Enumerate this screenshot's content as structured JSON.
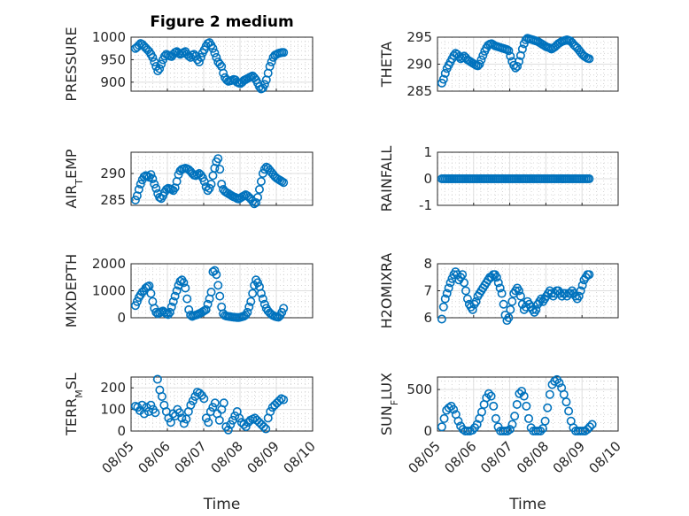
{
  "figure": {
    "title": "Figure 2 medium"
  },
  "x_ticks": [
    "08/05",
    "08/06",
    "08/07",
    "08/08",
    "08/09",
    "08/10"
  ],
  "chart_data": [
    {
      "type": "scatter",
      "ylabel": "PRESSURE",
      "xlabel": "",
      "title": "Figure 2 medium",
      "xlim": [
        0,
        5
      ],
      "ylim": [
        880,
        1000
      ],
      "yticks": [
        900,
        950,
        1000
      ],
      "grid": true,
      "y": [
        975,
        978,
        982,
        986,
        984,
        980,
        976,
        972,
        968,
        962,
        955,
        945,
        935,
        925,
        930,
        940,
        950,
        958,
        962,
        960,
        958,
        957,
        962,
        966,
        968,
        965,
        962,
        964,
        966,
        968,
        962,
        958,
        955,
        960,
        962,
        958,
        950,
        945,
        955,
        965,
        972,
        980,
        986,
        988,
        982,
        975,
        965,
        955,
        945,
        940,
        935,
        920,
        910,
        905,
        902,
        903,
        904,
        906,
        905,
        900,
        898,
        897,
        900,
        904,
        906,
        908,
        910,
        912,
        914,
        910,
        905,
        898,
        890,
        885,
        887,
        895,
        905,
        920,
        935,
        945,
        955,
        960,
        962,
        964,
        965,
        966,
        966
      ]
    },
    {
      "type": "scatter",
      "ylabel": "THETA",
      "xlabel": "",
      "xlim": [
        0,
        5
      ],
      "ylim": [
        285,
        295
      ],
      "yticks": [
        285,
        290,
        295
      ],
      "grid": true,
      "y": [
        286.5,
        287.2,
        288.3,
        289.2,
        289.8,
        290.4,
        291.0,
        291.6,
        292.0,
        291.8,
        291.4,
        291.0,
        291.2,
        291.5,
        291.2,
        290.8,
        290.6,
        290.4,
        290.2,
        290.0,
        289.8,
        289.7,
        290.0,
        290.8,
        291.6,
        292.4,
        293.0,
        293.5,
        293.7,
        293.8,
        293.6,
        293.4,
        293.3,
        293.2,
        293.1,
        293.0,
        292.9,
        292.8,
        292.7,
        292.5,
        291.5,
        290.5,
        289.8,
        289.3,
        289.6,
        290.5,
        291.6,
        292.8,
        293.8,
        294.5,
        294.8,
        294.7,
        294.6,
        294.5,
        294.4,
        294.3,
        294.2,
        294.0,
        293.8,
        293.6,
        293.4,
        293.2,
        293.1,
        293.0,
        292.8,
        293.0,
        293.2,
        293.5,
        293.8,
        294.0,
        294.2,
        294.3,
        294.4,
        294.5,
        294.4,
        294.3,
        294.0,
        293.6,
        293.3,
        293.0,
        292.6,
        292.2,
        291.8,
        291.5,
        291.3,
        291.1,
        291.0
      ]
    },
    {
      "type": "scatter",
      "ylabel": "AIR_TEMP",
      "xlabel": "",
      "xlim": [
        0,
        5
      ],
      "ylim": [
        284,
        294
      ],
      "yticks": [
        285,
        290
      ],
      "grid": true,
      "y": [
        285.0,
        285.8,
        287.0,
        288.0,
        288.8,
        289.4,
        289.6,
        289.5,
        289.3,
        289.8,
        289.0,
        288.0,
        287.2,
        286.2,
        285.5,
        285.3,
        285.8,
        286.5,
        287.0,
        287.2,
        287.1,
        287.0,
        286.8,
        287.3,
        288.5,
        289.8,
        290.5,
        290.8,
        290.9,
        291.0,
        290.9,
        290.7,
        290.4,
        290.0,
        289.7,
        289.6,
        289.8,
        290.0,
        289.7,
        289.2,
        288.5,
        287.5,
        286.8,
        287.2,
        288.0,
        289.6,
        291.0,
        292.2,
        292.8,
        290.8,
        288.0,
        287.0,
        286.6,
        286.4,
        286.2,
        286.0,
        285.8,
        285.6,
        285.5,
        285.3,
        285.2,
        285.4,
        285.6,
        285.8,
        286.0,
        285.8,
        285.5,
        285.2,
        284.8,
        284.3,
        284.5,
        285.5,
        287.0,
        288.5,
        290.0,
        290.8,
        291.2,
        291.0,
        290.6,
        290.2,
        289.8,
        289.4,
        289.1,
        288.9,
        288.7,
        288.5,
        288.3
      ]
    },
    {
      "type": "scatter",
      "ylabel": "RAINFALL",
      "xlabel": "",
      "xlim": [
        0,
        5
      ],
      "ylim": [
        -1,
        1
      ],
      "yticks": [
        -1,
        0,
        1
      ],
      "grid": true,
      "y": [
        0,
        0,
        0,
        0,
        0,
        0,
        0,
        0,
        0,
        0,
        0,
        0,
        0,
        0,
        0,
        0,
        0,
        0,
        0,
        0,
        0,
        0,
        0,
        0,
        0,
        0,
        0,
        0,
        0,
        0,
        0,
        0,
        0,
        0,
        0,
        0,
        0,
        0,
        0,
        0,
        0,
        0,
        0,
        0,
        0,
        0,
        0,
        0,
        0,
        0,
        0,
        0,
        0,
        0,
        0,
        0,
        0,
        0,
        0,
        0,
        0,
        0,
        0,
        0,
        0,
        0,
        0,
        0,
        0,
        0,
        0,
        0,
        0,
        0,
        0,
        0,
        0,
        0,
        0,
        0,
        0,
        0,
        0,
        0,
        0,
        0,
        0
      ]
    },
    {
      "type": "scatter",
      "ylabel": "MIXDEPTH",
      "xlabel": "",
      "xlim": [
        0,
        5
      ],
      "ylim": [
        0,
        2000
      ],
      "yticks": [
        0,
        1000,
        2000
      ],
      "grid": true,
      "y": [
        450,
        600,
        750,
        850,
        950,
        1000,
        1100,
        1150,
        1180,
        900,
        600,
        350,
        200,
        150,
        180,
        220,
        250,
        200,
        150,
        120,
        200,
        400,
        600,
        800,
        1000,
        1200,
        1350,
        1400,
        1300,
        1100,
        700,
        300,
        100,
        50,
        80,
        100,
        120,
        150,
        180,
        220,
        260,
        300,
        500,
        700,
        950,
        1700,
        1750,
        1600,
        1200,
        800,
        400,
        150,
        80,
        60,
        50,
        40,
        30,
        20,
        15,
        10,
        10,
        20,
        40,
        60,
        100,
        200,
        400,
        600,
        900,
        1200,
        1400,
        1300,
        1150,
        900,
        700,
        500,
        350,
        250,
        180,
        120,
        80,
        50,
        30,
        20,
        80,
        200,
        350
      ]
    },
    {
      "type": "scatter",
      "ylabel": "H2OMIXRA",
      "xlabel": "",
      "xlim": [
        0,
        5
      ],
      "ylim": [
        6,
        8
      ],
      "yticks": [
        6,
        7,
        8
      ],
      "grid": true,
      "y": [
        5.95,
        6.4,
        6.7,
        6.9,
        7.1,
        7.3,
        7.45,
        7.6,
        7.7,
        7.6,
        7.4,
        7.5,
        7.6,
        7.3,
        7.0,
        6.7,
        6.5,
        6.4,
        6.3,
        6.5,
        6.6,
        6.8,
        6.9,
        7.0,
        7.1,
        7.2,
        7.3,
        7.4,
        7.5,
        7.5,
        7.6,
        7.6,
        7.5,
        7.3,
        7.1,
        6.9,
        6.5,
        6.1,
        5.9,
        6.0,
        6.3,
        6.6,
        6.9,
        7.0,
        7.1,
        7.0,
        6.8,
        6.5,
        6.3,
        6.4,
        6.6,
        6.5,
        6.4,
        6.3,
        6.2,
        6.3,
        6.5,
        6.6,
        6.7,
        6.6,
        6.7,
        6.8,
        6.9,
        7.0,
        6.9,
        6.8,
        6.9,
        7.0,
        7.0,
        6.9,
        6.8,
        6.9,
        6.9,
        6.8,
        6.9,
        6.9,
        7.0,
        6.9,
        6.8,
        6.7,
        6.8,
        7.0,
        7.2,
        7.4,
        7.5,
        7.6,
        7.6
      ]
    },
    {
      "type": "scatter",
      "ylabel": "TERR_MSL",
      "xlabel": "Time",
      "xlim": [
        0,
        5
      ],
      "ylim": [
        0,
        250
      ],
      "yticks": [
        0,
        100,
        200
      ],
      "grid": true,
      "y": [
        115,
        110,
        95,
        120,
        80,
        110,
        90,
        120,
        100,
        85,
        240,
        190,
        160,
        120,
        90,
        60,
        40,
        80,
        70,
        100,
        85,
        60,
        35,
        55,
        90,
        120,
        140,
        160,
        180,
        175,
        165,
        150,
        60,
        40,
        90,
        110,
        130,
        80,
        50,
        100,
        130,
        20,
        5,
        30,
        50,
        70,
        90,
        60,
        40,
        30,
        20,
        40,
        50,
        55,
        60,
        50,
        40,
        30,
        20,
        10,
        60,
        90,
        110,
        120,
        130,
        140,
        150,
        145
      ]
    },
    {
      "type": "scatter",
      "ylabel": "SUN_FLUX",
      "xlabel": "Time",
      "xlim": [
        0,
        5
      ],
      "ylim": [
        0,
        650
      ],
      "yticks": [
        0,
        500
      ],
      "grid": true,
      "y": [
        50,
        150,
        250,
        280,
        300,
        260,
        200,
        120,
        60,
        20,
        0,
        0,
        0,
        10,
        40,
        80,
        150,
        230,
        320,
        400,
        450,
        420,
        300,
        150,
        50,
        0,
        0,
        0,
        0,
        20,
        80,
        180,
        320,
        450,
        480,
        420,
        300,
        150,
        40,
        0,
        0,
        0,
        0,
        30,
        120,
        280,
        440,
        560,
        600,
        620,
        580,
        520,
        440,
        350,
        240,
        120,
        40,
        0,
        0,
        0,
        0,
        0,
        20,
        50,
        80
      ]
    }
  ]
}
